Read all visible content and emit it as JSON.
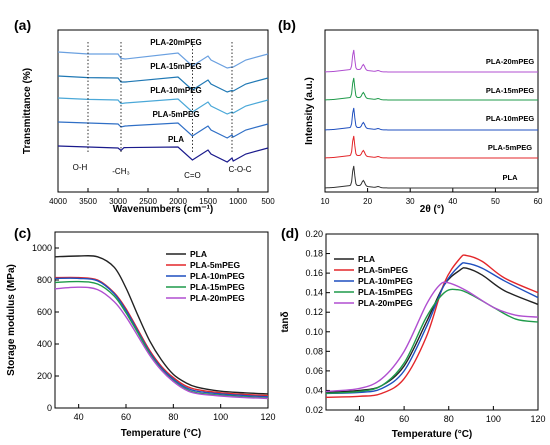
{
  "chart_data": [
    {
      "panel_label": "(a)",
      "type": "line",
      "xlabel": "Wavenumbers (cm⁻¹)",
      "ylabel": "Transmittance (%)",
      "xlim": [
        4000,
        500
      ],
      "x_ticks": [
        "4000",
        "3500",
        "3000",
        "2500",
        "2000",
        "1500",
        "1000",
        "500"
      ],
      "series": [
        {
          "name": "PLA",
          "color": "#1a1a8c",
          "values": [
            [
              4000,
              1.0
            ],
            [
              3500,
              0.95
            ],
            [
              3000,
              0.9
            ],
            [
              2950,
              0.78
            ],
            [
              2900,
              0.92
            ],
            [
              2000,
              0.95
            ],
            [
              1760,
              0.3
            ],
            [
              1500,
              0.8
            ],
            [
              1450,
              0.6
            ],
            [
              1180,
              0.2
            ],
            [
              1100,
              0.4
            ],
            [
              1080,
              0.25
            ],
            [
              870,
              0.6
            ],
            [
              500,
              0.9
            ]
          ]
        },
        {
          "name": "PLA-5mPEG",
          "color": "#2f6fc6",
          "values": [
            [
              4000,
              1.0
            ],
            [
              3500,
              0.95
            ],
            [
              3000,
              0.9
            ],
            [
              2950,
              0.75
            ],
            [
              2880,
              0.8
            ],
            [
              2000,
              0.95
            ],
            [
              1760,
              0.3
            ],
            [
              1500,
              0.8
            ],
            [
              1450,
              0.6
            ],
            [
              1180,
              0.2
            ],
            [
              1100,
              0.35
            ],
            [
              1080,
              0.25
            ],
            [
              870,
              0.6
            ],
            [
              500,
              0.9
            ]
          ]
        },
        {
          "name": "PLA-10mPEG",
          "color": "#4aa8d8",
          "values": [
            [
              4000,
              1.0
            ],
            [
              3500,
              0.93
            ],
            [
              3000,
              0.9
            ],
            [
              2950,
              0.72
            ],
            [
              2880,
              0.75
            ],
            [
              2000,
              0.95
            ],
            [
              1760,
              0.3
            ],
            [
              1500,
              0.8
            ],
            [
              1450,
              0.6
            ],
            [
              1180,
              0.2
            ],
            [
              1100,
              0.3
            ],
            [
              1080,
              0.25
            ],
            [
              870,
              0.6
            ],
            [
              500,
              0.9
            ]
          ]
        },
        {
          "name": "PLA-15mPEG",
          "color": "#1f78b4",
          "values": [
            [
              4000,
              1.0
            ],
            [
              3500,
              0.92
            ],
            [
              3000,
              0.9
            ],
            [
              2950,
              0.7
            ],
            [
              2880,
              0.7
            ],
            [
              2000,
              0.95
            ],
            [
              1760,
              0.3
            ],
            [
              1500,
              0.8
            ],
            [
              1450,
              0.6
            ],
            [
              1180,
              0.2
            ],
            [
              1100,
              0.28
            ],
            [
              1080,
              0.25
            ],
            [
              870,
              0.6
            ],
            [
              500,
              0.9
            ]
          ]
        },
        {
          "name": "PLA-20mPEG",
          "color": "#6aa0e0",
          "values": [
            [
              4000,
              1.0
            ],
            [
              3500,
              0.9
            ],
            [
              3000,
              0.9
            ],
            [
              2950,
              0.68
            ],
            [
              2880,
              0.65
            ],
            [
              2000,
              0.95
            ],
            [
              1760,
              0.3
            ],
            [
              1500,
              0.8
            ],
            [
              1450,
              0.6
            ],
            [
              1180,
              0.2
            ],
            [
              1100,
              0.25
            ],
            [
              1080,
              0.25
            ],
            [
              870,
              0.6
            ],
            [
              500,
              0.9
            ]
          ]
        }
      ],
      "annotations": [
        "O-H",
        "-CH₃",
        "C=O",
        "C-O-C"
      ],
      "annotation_x": [
        3500,
        2950,
        1760,
        1100
      ],
      "series_labels": [
        "PLA-20mPEG",
        "PLA-15mPEG",
        "PLA-10mPEG",
        "PLA-5mPEG",
        "PLA"
      ]
    },
    {
      "panel_label": "(b)",
      "type": "line",
      "xlabel": "2θ (°)",
      "ylabel": "Intensity (a.u.)",
      "xlim": [
        10,
        60
      ],
      "x_ticks": [
        "10",
        "20",
        "30",
        "40",
        "50",
        "60"
      ],
      "peaks_2theta": [
        16.7,
        19.0
      ],
      "series": [
        {
          "name": "PLA",
          "color": "#333333",
          "peak_heights": [
            0.9,
            0.25
          ]
        },
        {
          "name": "PLA-5mPEG",
          "color": "#e3262a",
          "peak_heights": [
            0.9,
            0.25
          ]
        },
        {
          "name": "PLA-10mPEG",
          "color": "#1f4fbf",
          "peak_heights": [
            0.9,
            0.25
          ]
        },
        {
          "name": "PLA-15mPEG",
          "color": "#1f9a4a",
          "peak_heights": [
            0.9,
            0.25
          ]
        },
        {
          "name": "PLA-20mPEG",
          "color": "#b04fd0",
          "peak_heights": [
            0.9,
            0.25
          ]
        }
      ],
      "series_labels": [
        "PLA-20mPEG",
        "PLA-15mPEG",
        "PLA-10mPEG",
        "PLA-5mPEG",
        "PLA"
      ]
    },
    {
      "panel_label": "(c)",
      "type": "line",
      "xlabel": "Temperature (°C)",
      "ylabel": "Storage modulus (MPa)",
      "xlim": [
        30,
        120
      ],
      "ylim": [
        0,
        1100
      ],
      "x_ticks": [
        "40",
        "60",
        "80",
        "100",
        "120"
      ],
      "y_ticks": [
        "0",
        "200",
        "400",
        "600",
        "800",
        "1000"
      ],
      "legend": "top-right",
      "series": [
        {
          "name": "PLA",
          "color": "#222222",
          "points": [
            [
              30,
              945
            ],
            [
              40,
              950
            ],
            [
              48,
              945
            ],
            [
              55,
              880
            ],
            [
              60,
              750
            ],
            [
              65,
              580
            ],
            [
              70,
              420
            ],
            [
              75,
              300
            ],
            [
              80,
              210
            ],
            [
              85,
              160
            ],
            [
              90,
              130
            ],
            [
              100,
              105
            ],
            [
              110,
              95
            ],
            [
              120,
              88
            ]
          ]
        },
        {
          "name": "PLA-5mPEG",
          "color": "#e3262a",
          "points": [
            [
              30,
              815
            ],
            [
              40,
              815
            ],
            [
              48,
              800
            ],
            [
              55,
              720
            ],
            [
              60,
              620
            ],
            [
              65,
              490
            ],
            [
              70,
              360
            ],
            [
              75,
              260
            ],
            [
              80,
              190
            ],
            [
              85,
              140
            ],
            [
              90,
              115
            ],
            [
              100,
              95
            ],
            [
              110,
              85
            ],
            [
              120,
              78
            ]
          ]
        },
        {
          "name": "PLA-10mPEG",
          "color": "#1f4fbf",
          "points": [
            [
              30,
              810
            ],
            [
              40,
              810
            ],
            [
              48,
              795
            ],
            [
              55,
              715
            ],
            [
              60,
              610
            ],
            [
              65,
              480
            ],
            [
              70,
              350
            ],
            [
              75,
              250
            ],
            [
              80,
              180
            ],
            [
              85,
              130
            ],
            [
              90,
              105
            ],
            [
              100,
              88
            ],
            [
              110,
              78
            ],
            [
              120,
              70
            ]
          ]
        },
        {
          "name": "PLA-15mPEG",
          "color": "#1f9a4a",
          "points": [
            [
              30,
              785
            ],
            [
              40,
              790
            ],
            [
              48,
              775
            ],
            [
              55,
              700
            ],
            [
              60,
              595
            ],
            [
              65,
              470
            ],
            [
              70,
              340
            ],
            [
              75,
              240
            ],
            [
              80,
              170
            ],
            [
              85,
              120
            ],
            [
              90,
              95
            ],
            [
              100,
              80
            ],
            [
              110,
              70
            ],
            [
              120,
              62
            ]
          ]
        },
        {
          "name": "PLA-20mPEG",
          "color": "#b04fd0",
          "points": [
            [
              30,
              745
            ],
            [
              40,
              755
            ],
            [
              48,
              740
            ],
            [
              55,
              665
            ],
            [
              60,
              570
            ],
            [
              65,
              450
            ],
            [
              70,
              330
            ],
            [
              75,
              235
            ],
            [
              80,
              165
            ],
            [
              85,
              115
            ],
            [
              90,
              90
            ],
            [
              100,
              75
            ],
            [
              110,
              65
            ],
            [
              120,
              60
            ]
          ]
        }
      ]
    },
    {
      "panel_label": "(d)",
      "type": "line",
      "xlabel": "Temperature (°C)",
      "ylabel": "tanδ",
      "xlim": [
        25,
        120
      ],
      "ylim": [
        0.02,
        0.2
      ],
      "x_ticks": [
        "40",
        "60",
        "80",
        "100",
        "120"
      ],
      "y_ticks": [
        "0.02",
        "0.04",
        "0.06",
        "0.08",
        "0.10",
        "0.12",
        "0.14",
        "0.16",
        "0.18",
        "0.20"
      ],
      "legend": "top-left",
      "series": [
        {
          "name": "PLA",
          "color": "#222222",
          "points": [
            [
              25,
              0.038
            ],
            [
              40,
              0.04
            ],
            [
              50,
              0.045
            ],
            [
              60,
              0.065
            ],
            [
              70,
              0.11
            ],
            [
              78,
              0.148
            ],
            [
              85,
              0.163
            ],
            [
              88,
              0.165
            ],
            [
              95,
              0.158
            ],
            [
              105,
              0.142
            ],
            [
              120,
              0.128
            ]
          ]
        },
        {
          "name": "PLA-5mPEG",
          "color": "#e3262a",
          "points": [
            [
              25,
              0.033
            ],
            [
              40,
              0.034
            ],
            [
              50,
              0.037
            ],
            [
              60,
              0.052
            ],
            [
              70,
              0.095
            ],
            [
              78,
              0.15
            ],
            [
              85,
              0.175
            ],
            [
              88,
              0.178
            ],
            [
              95,
              0.172
            ],
            [
              105,
              0.155
            ],
            [
              120,
              0.14
            ]
          ]
        },
        {
          "name": "PLA-10mPEG",
          "color": "#1f4fbf",
          "points": [
            [
              25,
              0.037
            ],
            [
              40,
              0.038
            ],
            [
              50,
              0.042
            ],
            [
              60,
              0.06
            ],
            [
              70,
              0.105
            ],
            [
              78,
              0.148
            ],
            [
              85,
              0.168
            ],
            [
              88,
              0.17
            ],
            [
              95,
              0.165
            ],
            [
              105,
              0.152
            ],
            [
              120,
              0.135
            ]
          ]
        },
        {
          "name": "PLA-15mPEG",
          "color": "#1f9a4a",
          "points": [
            [
              25,
              0.037
            ],
            [
              40,
              0.039
            ],
            [
              50,
              0.045
            ],
            [
              60,
              0.068
            ],
            [
              70,
              0.115
            ],
            [
              78,
              0.14
            ],
            [
              84,
              0.143
            ],
            [
              90,
              0.138
            ],
            [
              100,
              0.125
            ],
            [
              110,
              0.113
            ],
            [
              120,
              0.11
            ]
          ]
        },
        {
          "name": "PLA-20mPEG",
          "color": "#b04fd0",
          "points": [
            [
              25,
              0.039
            ],
            [
              40,
              0.042
            ],
            [
              50,
              0.052
            ],
            [
              60,
              0.08
            ],
            [
              70,
              0.128
            ],
            [
              76,
              0.148
            ],
            [
              80,
              0.15
            ],
            [
              88,
              0.142
            ],
            [
              100,
              0.125
            ],
            [
              110,
              0.117
            ],
            [
              120,
              0.115
            ]
          ]
        }
      ]
    }
  ]
}
